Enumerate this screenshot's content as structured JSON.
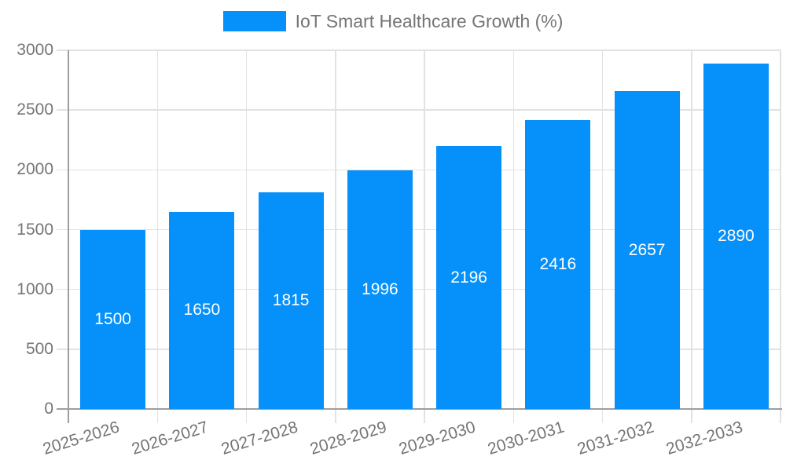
{
  "chart_data": {
    "type": "bar",
    "title": "IoT Smart Healthcare Growth (%)",
    "legend_label": "IoT Smart Healthcare Growth (%)",
    "legend_position": "top",
    "categories": [
      "2025-2026",
      "2026-2027",
      "2027-2028",
      "2028-2029",
      "2029-2030",
      "2030-2031",
      "2031-2032",
      "2032-2033"
    ],
    "values": [
      1500,
      1650,
      1815,
      1996,
      2196,
      2416,
      2657,
      2890
    ],
    "xlabel": "",
    "ylabel": "",
    "ylim": [
      0,
      3000
    ],
    "yticks": [
      0,
      500,
      1000,
      1500,
      2000,
      2500,
      3000
    ],
    "grid": true,
    "value_labels_inside_bars": true,
    "colors": {
      "bar": "#0590fa",
      "grid": "#e2e2e2",
      "axis": "#9e9e9e",
      "tick_text": "#757575",
      "value_text": "#ffffff",
      "background": "#ffffff"
    }
  }
}
